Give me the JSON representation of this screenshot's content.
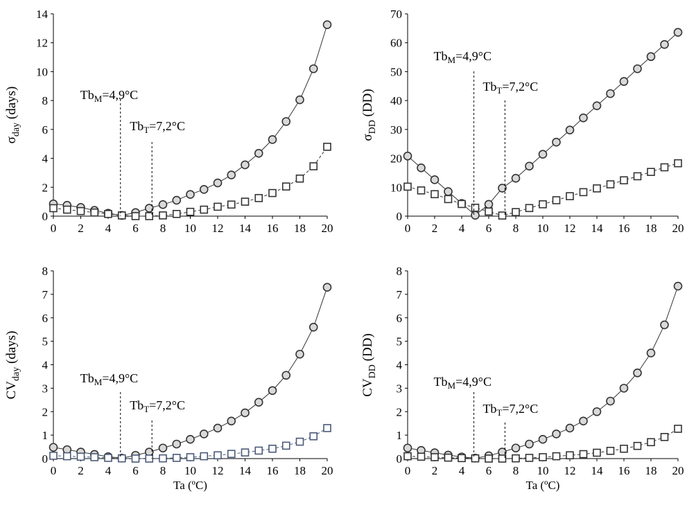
{
  "chart_data": [
    {
      "type": "line",
      "ylabel": "σday (days)",
      "ylabel_main": "σ",
      "ylabel_sub": "day",
      "ylabel_rest": " (days)",
      "xlabel": "",
      "xlim": [
        0,
        20
      ],
      "ylim": [
        0,
        14
      ],
      "yticks": [
        0,
        2,
        4,
        6,
        8,
        10,
        12,
        14
      ],
      "xticks": [
        0,
        2,
        4,
        6,
        8,
        10,
        12,
        14,
        16,
        18,
        20
      ],
      "x": [
        0,
        1,
        2,
        3,
        4,
        5,
        6,
        7,
        8,
        9,
        10,
        11,
        12,
        13,
        14,
        15,
        16,
        17,
        18,
        19,
        20
      ],
      "series": [
        {
          "marker": "circle",
          "line": "solid",
          "color": "#333333",
          "values": [
            0.85,
            0.75,
            0.6,
            0.4,
            0.2,
            0.05,
            0.25,
            0.55,
            0.8,
            1.1,
            1.5,
            1.85,
            2.3,
            2.85,
            3.55,
            4.35,
            5.3,
            6.55,
            8.05,
            10.2,
            13.25
          ]
        },
        {
          "marker": "square",
          "line": "dashed",
          "color": "#333333",
          "values": [
            0.55,
            0.45,
            0.35,
            0.25,
            0.15,
            0.05,
            0.0,
            0.0,
            0.05,
            0.15,
            0.3,
            0.45,
            0.65,
            0.8,
            1.0,
            1.25,
            1.6,
            2.05,
            2.6,
            3.45,
            4.8
          ]
        }
      ],
      "annotations": [
        {
          "x": 4.9,
          "label_main": "Tb",
          "label_sub": "M",
          "label_rest": "=4,9°C",
          "text": "TbM=4,9°C"
        },
        {
          "x": 7.2,
          "label_main": "Tb",
          "label_sub": "T",
          "label_rest": "=7,2°C",
          "text": "TbT=7,2°C"
        }
      ]
    },
    {
      "type": "line",
      "ylabel": "σDD (DD)",
      "ylabel_main": "σ",
      "ylabel_sub": "DD",
      "ylabel_rest": " (DD)",
      "xlabel": "",
      "xlim": [
        0,
        20
      ],
      "ylim": [
        0,
        70
      ],
      "yticks": [
        0,
        10,
        20,
        30,
        40,
        50,
        60,
        70
      ],
      "xticks": [
        0,
        2,
        4,
        6,
        8,
        10,
        12,
        14,
        16,
        18,
        20
      ],
      "x": [
        0,
        1,
        2,
        3,
        4,
        5,
        6,
        7,
        8,
        9,
        10,
        11,
        12,
        13,
        14,
        15,
        16,
        17,
        18,
        19,
        20
      ],
      "series": [
        {
          "marker": "circle",
          "line": "solid",
          "color": "#333333",
          "values": [
            20.8,
            16.7,
            12.6,
            8.5,
            4.4,
            0.3,
            4.1,
            9.7,
            13.1,
            17.3,
            21.4,
            25.6,
            29.8,
            34.0,
            38.2,
            42.4,
            46.6,
            51.0,
            55.2,
            59.4,
            63.6
          ]
        },
        {
          "marker": "square",
          "line": "dashed",
          "color": "#333333",
          "values": [
            10.2,
            8.9,
            7.6,
            5.9,
            4.2,
            2.9,
            1.6,
            0.2,
            1.4,
            2.8,
            4.1,
            5.5,
            6.9,
            8.3,
            9.6,
            11.0,
            12.4,
            13.8,
            15.3,
            16.9,
            18.3
          ]
        }
      ],
      "annotations": [
        {
          "x": 4.9,
          "label_main": "Tb",
          "label_sub": "M",
          "label_rest": "=4,9°C",
          "text": "TbM=4,9°C"
        },
        {
          "x": 7.2,
          "label_main": "Tb",
          "label_sub": "T",
          "label_rest": "=7,2°C",
          "text": "TbT=7,2°C"
        }
      ]
    },
    {
      "type": "line",
      "ylabel": "CVday (days)",
      "ylabel_main": "CV",
      "ylabel_sub": "day",
      "ylabel_rest": " (days)",
      "xlabel": "Ta (ºC)",
      "xlim": [
        0,
        20
      ],
      "ylim": [
        0,
        8
      ],
      "yticks": [
        0,
        1,
        2,
        3,
        4,
        5,
        6,
        7,
        8
      ],
      "xticks": [
        0,
        2,
        4,
        6,
        8,
        10,
        12,
        14,
        16,
        18,
        20
      ],
      "x": [
        0,
        1,
        2,
        3,
        4,
        5,
        6,
        7,
        8,
        9,
        10,
        11,
        12,
        13,
        14,
        15,
        16,
        17,
        18,
        19,
        20
      ],
      "series": [
        {
          "marker": "circle",
          "line": "solid",
          "color": "#333333",
          "values": [
            0.48,
            0.38,
            0.28,
            0.18,
            0.08,
            0.02,
            0.14,
            0.28,
            0.45,
            0.62,
            0.82,
            1.05,
            1.3,
            1.6,
            1.95,
            2.4,
            2.9,
            3.55,
            4.45,
            5.6,
            7.3
          ]
        },
        {
          "marker": "square",
          "line": "dashed",
          "color": "#4a5a78",
          "values": [
            0.12,
            0.1,
            0.08,
            0.06,
            0.03,
            0.01,
            0.0,
            0.0,
            0.01,
            0.03,
            0.06,
            0.1,
            0.14,
            0.2,
            0.26,
            0.34,
            0.42,
            0.55,
            0.72,
            0.95,
            1.3
          ]
        }
      ],
      "annotations": [
        {
          "x": 4.9,
          "label_main": "Tb",
          "label_sub": "M",
          "label_rest": "=4,9°C",
          "text": "TbM=4,9°C"
        },
        {
          "x": 7.2,
          "label_main": "Tb",
          "label_sub": "T",
          "label_rest": "=7,2°C",
          "text": "TbT=7,2°C"
        }
      ]
    },
    {
      "type": "line",
      "ylabel": "CVDD (DD)",
      "ylabel_main": "CV",
      "ylabel_sub": "DD",
      "ylabel_rest": " (DD)",
      "xlabel": "Ta (ºC)",
      "xlim": [
        0,
        20
      ],
      "ylim": [
        0,
        8
      ],
      "yticks": [
        0,
        1,
        2,
        3,
        4,
        5,
        6,
        7,
        8
      ],
      "xticks": [
        0,
        2,
        4,
        6,
        8,
        10,
        12,
        14,
        16,
        18,
        20
      ],
      "x": [
        0,
        1,
        2,
        3,
        4,
        5,
        6,
        7,
        8,
        9,
        10,
        11,
        12,
        13,
        14,
        15,
        16,
        17,
        18,
        19,
        20
      ],
      "series": [
        {
          "marker": "circle",
          "line": "solid",
          "color": "#333333",
          "values": [
            0.45,
            0.35,
            0.25,
            0.15,
            0.07,
            0.02,
            0.12,
            0.28,
            0.45,
            0.62,
            0.82,
            1.05,
            1.3,
            1.6,
            2.0,
            2.45,
            3.0,
            3.65,
            4.5,
            5.7,
            7.35
          ]
        },
        {
          "marker": "square",
          "line": "dashed",
          "color": "#333333",
          "values": [
            0.1,
            0.08,
            0.06,
            0.04,
            0.02,
            0.01,
            0.0,
            0.0,
            0.01,
            0.03,
            0.06,
            0.1,
            0.14,
            0.19,
            0.25,
            0.33,
            0.42,
            0.54,
            0.7,
            0.92,
            1.27
          ]
        }
      ],
      "annotations": [
        {
          "x": 4.9,
          "label_main": "Tb",
          "label_sub": "M",
          "label_rest": "=4,9°C",
          "text": "TbM=4,9°C"
        },
        {
          "x": 7.2,
          "label_main": "Tb",
          "label_sub": "T",
          "label_rest": "=7,2°C",
          "text": "TbT=7,2°C"
        }
      ]
    }
  ]
}
